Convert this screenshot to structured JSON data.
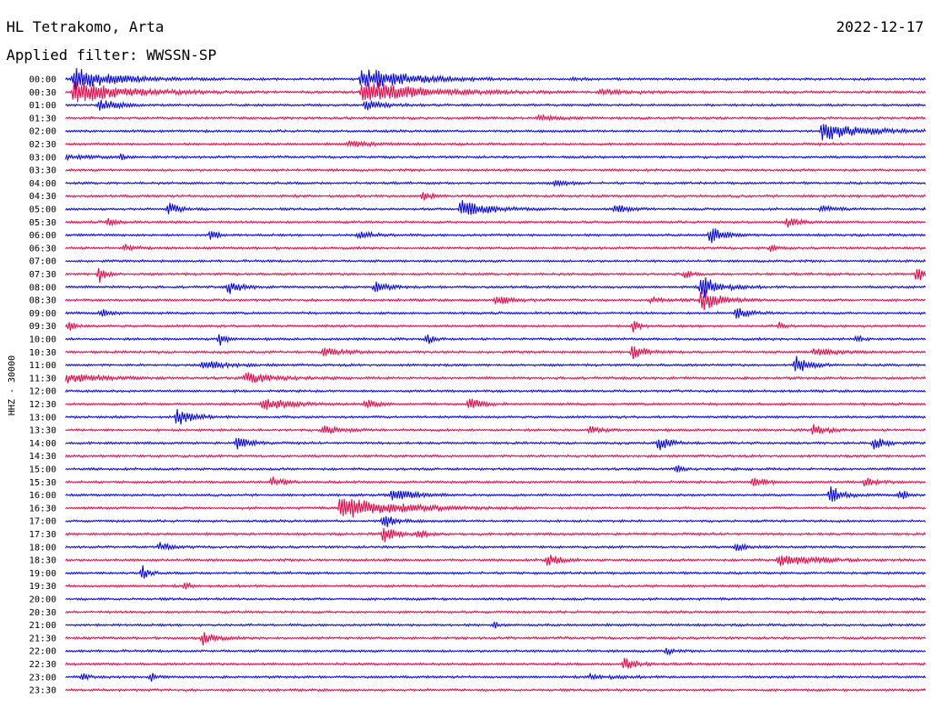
{
  "header": {
    "station": "HL Tetrakomo, Arta",
    "date": "2022-12-17",
    "filter": "Applied filter: WWSSN-SP"
  },
  "chart_data": {
    "type": "line",
    "title": "HL Tetrakomo, Arta",
    "ylabel": "HHZ - 30000",
    "series_colors": [
      "#0000ee",
      "#ee0044"
    ],
    "row_labels": [
      "00:00",
      "00:30",
      "01:00",
      "01:30",
      "02:00",
      "02:30",
      "03:00",
      "03:30",
      "04:00",
      "04:30",
      "05:00",
      "05:30",
      "06:00",
      "06:30",
      "07:00",
      "07:30",
      "08:00",
      "08:30",
      "09:00",
      "09:30",
      "10:00",
      "10:30",
      "11:00",
      "11:30",
      "12:00",
      "12:30",
      "13:00",
      "13:30",
      "14:00",
      "14:30",
      "15:00",
      "15:30",
      "16:00",
      "16:30",
      "17:00",
      "17:30",
      "18:00",
      "18:30",
      "19:00",
      "19:30",
      "20:00",
      "20:30",
      "21:00",
      "21:30",
      "22:00",
      "22:30",
      "23:00",
      "23:30"
    ],
    "events": [
      {
        "row": 0,
        "x": 0.01,
        "amp": 1.0,
        "dur": 0.07
      },
      {
        "row": 0,
        "x": 0.345,
        "amp": 1.0,
        "dur": 0.08
      },
      {
        "row": 0,
        "x": 0.59,
        "amp": 0.1,
        "dur": 0.02
      },
      {
        "row": 1,
        "x": 0.01,
        "amp": 1.0,
        "dur": 0.09
      },
      {
        "row": 1,
        "x": 0.345,
        "amp": 1.0,
        "dur": 0.1
      },
      {
        "row": 1,
        "x": 0.62,
        "amp": 0.2,
        "dur": 0.05
      },
      {
        "row": 2,
        "x": 0.04,
        "amp": 0.5,
        "dur": 0.03
      },
      {
        "row": 2,
        "x": 0.35,
        "amp": 0.4,
        "dur": 0.03
      },
      {
        "row": 3,
        "x": 0.55,
        "amp": 0.2,
        "dur": 0.04
      },
      {
        "row": 4,
        "x": 0.88,
        "amp": 0.8,
        "dur": 0.07
      },
      {
        "row": 5,
        "x": 0.33,
        "amp": 0.25,
        "dur": 0.04
      },
      {
        "row": 6,
        "x": 0.0,
        "amp": 0.15,
        "dur": 0.06
      },
      {
        "row": 6,
        "x": 0.065,
        "amp": 0.4,
        "dur": 0.005
      },
      {
        "row": 8,
        "x": 0.57,
        "amp": 0.3,
        "dur": 0.02
      },
      {
        "row": 9,
        "x": 0.415,
        "amp": 0.35,
        "dur": 0.02
      },
      {
        "row": 10,
        "x": 0.12,
        "amp": 0.5,
        "dur": 0.02
      },
      {
        "row": 10,
        "x": 0.46,
        "amp": 1.0,
        "dur": 0.04
      },
      {
        "row": 10,
        "x": 0.64,
        "amp": 0.4,
        "dur": 0.02
      },
      {
        "row": 10,
        "x": 0.88,
        "amp": 0.3,
        "dur": 0.02
      },
      {
        "row": 11,
        "x": 0.05,
        "amp": 0.3,
        "dur": 0.015
      },
      {
        "row": 11,
        "x": 0.84,
        "amp": 0.35,
        "dur": 0.02
      },
      {
        "row": 12,
        "x": 0.17,
        "amp": 0.6,
        "dur": 0.01
      },
      {
        "row": 12,
        "x": 0.34,
        "amp": 0.3,
        "dur": 0.03
      },
      {
        "row": 12,
        "x": 0.75,
        "amp": 0.8,
        "dur": 0.02
      },
      {
        "row": 13,
        "x": 0.07,
        "amp": 0.3,
        "dur": 0.015
      },
      {
        "row": 13,
        "x": 0.82,
        "amp": 0.3,
        "dur": 0.01
      },
      {
        "row": 15,
        "x": 0.04,
        "amp": 0.9,
        "dur": 0.01
      },
      {
        "row": 15,
        "x": 0.72,
        "amp": 0.4,
        "dur": 0.01
      },
      {
        "row": 15,
        "x": 0.99,
        "amp": 0.7,
        "dur": 0.02
      },
      {
        "row": 16,
        "x": 0.19,
        "amp": 0.6,
        "dur": 0.02
      },
      {
        "row": 16,
        "x": 0.36,
        "amp": 0.5,
        "dur": 0.02
      },
      {
        "row": 16,
        "x": 0.74,
        "amp": 1.0,
        "dur": 0.03
      },
      {
        "row": 17,
        "x": 0.5,
        "amp": 0.4,
        "dur": 0.03
      },
      {
        "row": 17,
        "x": 0.68,
        "amp": 0.2,
        "dur": 0.03
      },
      {
        "row": 17,
        "x": 0.74,
        "amp": 1.0,
        "dur": 0.03
      },
      {
        "row": 18,
        "x": 0.04,
        "amp": 0.3,
        "dur": 0.02
      },
      {
        "row": 18,
        "x": 0.78,
        "amp": 0.5,
        "dur": 0.02
      },
      {
        "row": 19,
        "x": 0.005,
        "amp": 0.5,
        "dur": 0.01
      },
      {
        "row": 19,
        "x": 0.66,
        "amp": 0.6,
        "dur": 0.01
      },
      {
        "row": 19,
        "x": 0.83,
        "amp": 0.3,
        "dur": 0.01
      },
      {
        "row": 20,
        "x": 0.18,
        "amp": 0.6,
        "dur": 0.01
      },
      {
        "row": 20,
        "x": 0.42,
        "amp": 0.5,
        "dur": 0.01
      },
      {
        "row": 20,
        "x": 0.92,
        "amp": 0.4,
        "dur": 0.01
      },
      {
        "row": 21,
        "x": 0.3,
        "amp": 0.3,
        "dur": 0.04
      },
      {
        "row": 21,
        "x": 0.66,
        "amp": 0.7,
        "dur": 0.02
      },
      {
        "row": 21,
        "x": 0.87,
        "amp": 0.3,
        "dur": 0.04
      },
      {
        "row": 22,
        "x": 0.16,
        "amp": 0.4,
        "dur": 0.04
      },
      {
        "row": 22,
        "x": 0.85,
        "amp": 0.9,
        "dur": 0.02
      },
      {
        "row": 23,
        "x": 0.0,
        "amp": 0.4,
        "dur": 0.06
      },
      {
        "row": 23,
        "x": 0.21,
        "amp": 0.5,
        "dur": 0.05
      },
      {
        "row": 25,
        "x": 0.23,
        "amp": 0.5,
        "dur": 0.05
      },
      {
        "row": 25,
        "x": 0.35,
        "amp": 0.4,
        "dur": 0.02
      },
      {
        "row": 25,
        "x": 0.47,
        "amp": 0.5,
        "dur": 0.02
      },
      {
        "row": 26,
        "x": 0.13,
        "amp": 0.7,
        "dur": 0.03
      },
      {
        "row": 27,
        "x": 0.3,
        "amp": 0.4,
        "dur": 0.03
      },
      {
        "row": 27,
        "x": 0.61,
        "amp": 0.3,
        "dur": 0.02
      },
      {
        "row": 27,
        "x": 0.87,
        "amp": 0.5,
        "dur": 0.02
      },
      {
        "row": 28,
        "x": 0.2,
        "amp": 0.6,
        "dur": 0.02
      },
      {
        "row": 28,
        "x": 0.69,
        "amp": 0.6,
        "dur": 0.02
      },
      {
        "row": 28,
        "x": 0.94,
        "amp": 0.6,
        "dur": 0.02
      },
      {
        "row": 30,
        "x": 0.71,
        "amp": 0.5,
        "dur": 0.01
      },
      {
        "row": 31,
        "x": 0.24,
        "amp": 0.4,
        "dur": 0.02
      },
      {
        "row": 31,
        "x": 0.8,
        "amp": 0.5,
        "dur": 0.02
      },
      {
        "row": 31,
        "x": 0.93,
        "amp": 0.4,
        "dur": 0.02
      },
      {
        "row": 32,
        "x": 0.38,
        "amp": 0.5,
        "dur": 0.04
      },
      {
        "row": 32,
        "x": 0.89,
        "amp": 0.8,
        "dur": 0.02
      },
      {
        "row": 32,
        "x": 0.97,
        "amp": 0.6,
        "dur": 0.01
      },
      {
        "row": 33,
        "x": 0.32,
        "amp": 1.0,
        "dur": 0.09
      },
      {
        "row": 34,
        "x": 0.37,
        "amp": 0.6,
        "dur": 0.02
      },
      {
        "row": 35,
        "x": 0.37,
        "amp": 0.8,
        "dur": 0.02
      },
      {
        "row": 35,
        "x": 0.41,
        "amp": 0.3,
        "dur": 0.02
      },
      {
        "row": 36,
        "x": 0.11,
        "amp": 0.3,
        "dur": 0.02
      },
      {
        "row": 36,
        "x": 0.78,
        "amp": 0.3,
        "dur": 0.02
      },
      {
        "row": 37,
        "x": 0.56,
        "amp": 0.6,
        "dur": 0.02
      },
      {
        "row": 37,
        "x": 0.83,
        "amp": 0.5,
        "dur": 0.06
      },
      {
        "row": 38,
        "x": 0.09,
        "amp": 0.6,
        "dur": 0.01
      },
      {
        "row": 39,
        "x": 0.14,
        "amp": 0.3,
        "dur": 0.01
      },
      {
        "row": 42,
        "x": 0.5,
        "amp": 0.3,
        "dur": 0.005
      },
      {
        "row": 43,
        "x": 0.16,
        "amp": 0.6,
        "dur": 0.02
      },
      {
        "row": 44,
        "x": 0.7,
        "amp": 0.3,
        "dur": 0.01
      },
      {
        "row": 45,
        "x": 0.65,
        "amp": 0.6,
        "dur": 0.02
      },
      {
        "row": 46,
        "x": 0.02,
        "amp": 0.3,
        "dur": 0.01
      },
      {
        "row": 46,
        "x": 0.1,
        "amp": 0.3,
        "dur": 0.01
      },
      {
        "row": 46,
        "x": 0.61,
        "amp": 0.2,
        "dur": 0.04
      }
    ]
  }
}
